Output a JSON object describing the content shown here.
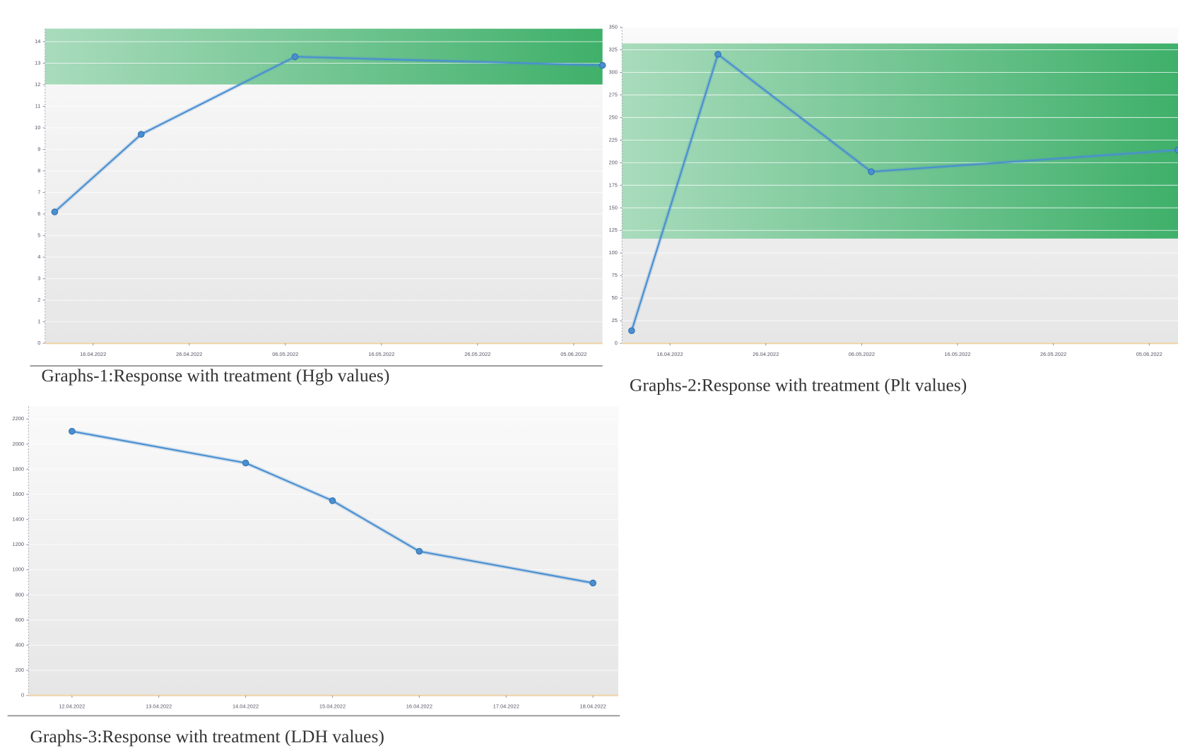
{
  "chart_data": [
    {
      "type": "line",
      "caption": "Graphs-1:Response with treatment (Hgb values)",
      "x": [
        "2022-04-12",
        "2022-04-21",
        "2022-05-07",
        "2022-06-08"
      ],
      "series": [
        {
          "color": "#4a8fd0",
          "values": [
            6.1,
            9.7,
            13.3,
            12.9
          ]
        }
      ],
      "xlim": [
        "2022-04-11",
        "2022-06-08"
      ],
      "xticks": [
        {
          "value": "2022-04-16",
          "label": "16.04.2022"
        },
        {
          "value": "2022-04-26",
          "label": "26.04.2022"
        },
        {
          "value": "2022-05-06",
          "label": "06.05.2022"
        },
        {
          "value": "2022-05-16",
          "label": "16.05.2022"
        },
        {
          "value": "2022-05-26",
          "label": "26.05.2022"
        },
        {
          "value": "2022-06-05",
          "label": "05.06.2022"
        }
      ],
      "ylim": [
        0,
        14.6
      ],
      "yticks": [
        0,
        1,
        2,
        3,
        4,
        5,
        6,
        7,
        8,
        9,
        10,
        11,
        12,
        13,
        14
      ],
      "band": [
        12,
        14.6
      ],
      "band_color": "#3fb06a",
      "grid": true
    },
    {
      "type": "line",
      "caption": "Graphs-2:Response with treatment (Plt values)",
      "x": [
        "2022-04-12",
        "2022-04-21",
        "2022-05-07",
        "2022-06-08"
      ],
      "series": [
        {
          "color": "#4a8fd0",
          "values": [
            14,
            320,
            190,
            214
          ]
        }
      ],
      "xlim": [
        "2022-04-11",
        "2022-06-08"
      ],
      "xticks": [
        {
          "value": "2022-04-16",
          "label": "16.04.2022"
        },
        {
          "value": "2022-04-26",
          "label": "26.04.2022"
        },
        {
          "value": "2022-05-06",
          "label": "06.05.2022"
        },
        {
          "value": "2022-05-16",
          "label": "16.05.2022"
        },
        {
          "value": "2022-05-26",
          "label": "26.05.2022"
        },
        {
          "value": "2022-06-05",
          "label": "05.06.2022"
        }
      ],
      "ylim": [
        0,
        350
      ],
      "yticks": [
        0,
        25,
        50,
        75,
        100,
        125,
        150,
        175,
        200,
        225,
        250,
        275,
        300,
        325,
        350
      ],
      "band": [
        116,
        332
      ],
      "band_color": "#3fb06a",
      "grid": true
    },
    {
      "type": "line",
      "caption": "Graphs-3:Response with treatment (LDH values)",
      "x": [
        "2022-04-12",
        "2022-04-14",
        "2022-04-15",
        "2022-04-16",
        "2022-04-18"
      ],
      "series": [
        {
          "color": "#4a8fd0",
          "values": [
            2102,
            1850,
            1550,
            1147,
            895
          ]
        }
      ],
      "xlim": [
        "2022-04-11T12:00",
        "2022-04-18T07:00"
      ],
      "xticks": [
        {
          "value": "2022-04-12",
          "label": "12.04.2022"
        },
        {
          "value": "2022-04-13",
          "label": "13.04.2022"
        },
        {
          "value": "2022-04-14",
          "label": "14.04.2022"
        },
        {
          "value": "2022-04-15",
          "label": "15.04.2022"
        },
        {
          "value": "2022-04-16",
          "label": "16.04.2022"
        },
        {
          "value": "2022-04-17",
          "label": "17.04.2022"
        },
        {
          "value": "2022-04-18",
          "label": "18.04.2022"
        }
      ],
      "ylim": [
        0,
        2300
      ],
      "yticks": [
        0,
        200,
        400,
        600,
        800,
        1000,
        1200,
        1400,
        1600,
        1800,
        2000,
        2200
      ],
      "grid": true
    }
  ]
}
